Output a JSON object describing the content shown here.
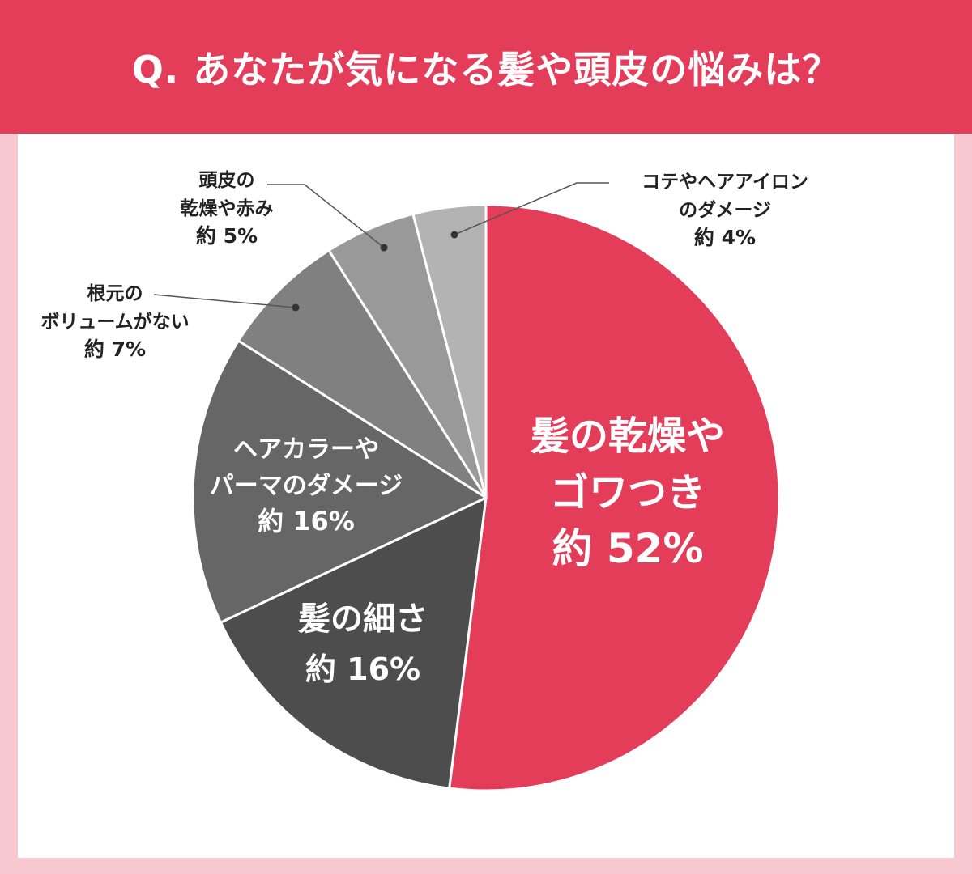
{
  "header": {
    "title": "Q. あなたが気になる髪や頭皮の悩みは？",
    "color": "#e33d5a"
  },
  "chart_data": {
    "type": "pie",
    "title": "Q. あなたが気になる髪や頭皮の悩みは？",
    "start": "12 o'clock, clockwise",
    "slices": [
      {
        "label": [
          "髪の乾燥や",
          "ゴワつき"
        ],
        "value_label": "約 52%",
        "value": 52,
        "color": "#e33d5a",
        "label_position": "inside"
      },
      {
        "label": [
          "髪の細さ"
        ],
        "value_label": "約 16%",
        "value": 16,
        "color": "#4d4d4d",
        "label_position": "inside"
      },
      {
        "label": [
          "ヘアカラーや",
          "パーマのダメージ"
        ],
        "value_label": "約 16%",
        "value": 16,
        "color": "#666666",
        "label_position": "inside"
      },
      {
        "label": [
          "根元の",
          "ボリュームがない"
        ],
        "value_label": "約 7%",
        "value": 7,
        "color": "#808080",
        "label_position": "outside-left"
      },
      {
        "label": [
          "頭皮の",
          "乾燥や赤み"
        ],
        "value_label": "約 5%",
        "value": 5,
        "color": "#999999",
        "label_position": "outside-left"
      },
      {
        "label": [
          "コテやヘアアイロン",
          "のダメージ"
        ],
        "value_label": "約 4%",
        "value": 4,
        "color": "#b3b3b3",
        "label_position": "outside-right"
      }
    ]
  }
}
